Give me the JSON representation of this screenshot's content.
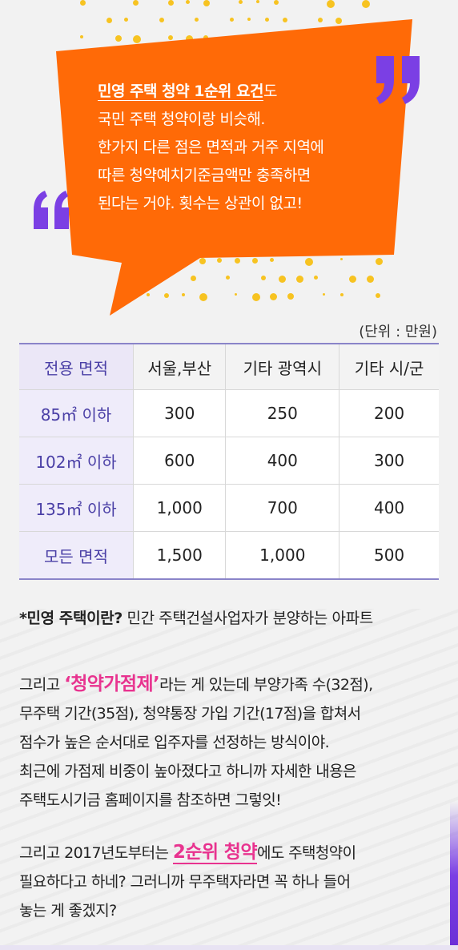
{
  "bubble": {
    "title": "민영 주택 청약 1순위 요건",
    "title_suffix": "도",
    "lines": [
      "국민 주택 청약이랑 비슷해.",
      "한가지 다른 점은 면적과 거주 지역에",
      "따른 청약예치기준금액만 충족하면",
      "된다는 거야. 횟수는 상관이 없고!"
    ],
    "color": "#ff6a07"
  },
  "table": {
    "unit": "(단위 : 만원)",
    "headers": [
      "전용 면적",
      "서울,부산",
      "기타 광역시",
      "기타 시/군"
    ],
    "rows": [
      {
        "label": "85㎡ 이하",
        "values": [
          "300",
          "250",
          "200"
        ]
      },
      {
        "label": "102㎡ 이하",
        "values": [
          "600",
          "400",
          "300"
        ]
      },
      {
        "label": "135㎡ 이하",
        "values": [
          "1,000",
          "700",
          "400"
        ]
      },
      {
        "label": "모든 면적",
        "values": [
          "1,500",
          "1,000",
          "500"
        ]
      }
    ]
  },
  "note": {
    "bold": "*민영 주택이란?",
    "text": " 민간 주택건설사업자가 분양하는 아파트"
  },
  "para1": {
    "prefix": "그리고 ",
    "highlight": "‘청약가점제’",
    "line1_rest": "라는 게 있는데 부양가족 수(32점),",
    "line2": "무주택 기간(35점), 청약통장 가입 기간(17점)을 합쳐서",
    "line3": "점수가 높은 순서대로 입주자를 선정하는 방식이야.",
    "line4": "최근에 가점제 비중이 높아졌다고 하니까 자세한 내용은",
    "line5": "주택도시기금 홈페이지를 참조하면 그렇잇!"
  },
  "para2": {
    "prefix": "그리고 2017년도부터는 ",
    "highlight": "2순위 청약",
    "line1_rest": "에도 주택청약이",
    "line2": "필요하다고 하네? 그러니까 무주택자라면 꼭 하나 들어",
    "line3": "놓는 게 좋겠지?"
  },
  "colors": {
    "accent_purple": "#7b3fe4",
    "highlight_pink": "#e8338f",
    "dots_yellow": "#f7c321"
  }
}
